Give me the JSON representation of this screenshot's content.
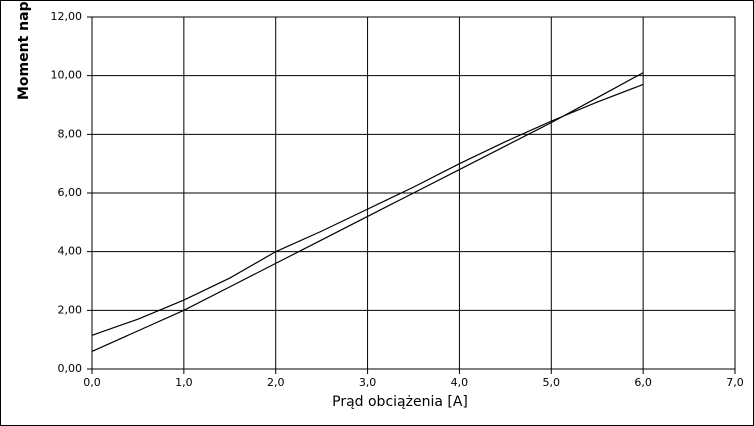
{
  "chart_data": {
    "type": "line",
    "x_label": "Prąd obciążenia [A]",
    "y_label": "Moment nap",
    "series": [
      {
        "color": "#000000",
        "x": [
          0,
          0.5,
          1,
          1.5,
          2,
          2.5,
          3,
          3.5,
          4,
          4.5,
          5,
          5.5,
          6
        ],
        "values": [
          1.15,
          1.7,
          2.35,
          3.1,
          4.0,
          4.7,
          5.45,
          6.2,
          7.0,
          7.75,
          8.45,
          9.1,
          9.7
        ]
      },
      {
        "color": "#000000",
        "x": [
          0,
          0.5,
          1,
          1.5,
          2,
          2.5,
          3,
          3.5,
          4,
          4.5,
          5,
          5.5,
          6
        ],
        "values": [
          0.6,
          1.3,
          2.0,
          2.8,
          3.6,
          4.4,
          5.2,
          6.0,
          6.8,
          7.6,
          8.4,
          9.25,
          10.1
        ]
      }
    ],
    "xlim": [
      0,
      7
    ],
    "ylim": [
      0,
      12
    ],
    "xticks": [
      {
        "value": 0,
        "label": "0,0"
      },
      {
        "value": 1,
        "label": "1,0"
      },
      {
        "value": 2,
        "label": "2,0"
      },
      {
        "value": 3,
        "label": "3,0"
      },
      {
        "value": 4,
        "label": "4,0"
      },
      {
        "value": 5,
        "label": "5,0"
      },
      {
        "value": 6,
        "label": "6,0"
      },
      {
        "value": 7,
        "label": "7,0"
      }
    ],
    "yticks": [
      {
        "value": 0,
        "label": "0,00"
      },
      {
        "value": 2,
        "label": "2,00"
      },
      {
        "value": 4,
        "label": "4,00"
      },
      {
        "value": 6,
        "label": "6,00"
      },
      {
        "value": 8,
        "label": "8,00"
      },
      {
        "value": 10,
        "label": "10,00"
      },
      {
        "value": 12,
        "label": "12,00"
      }
    ],
    "grid": true
  }
}
